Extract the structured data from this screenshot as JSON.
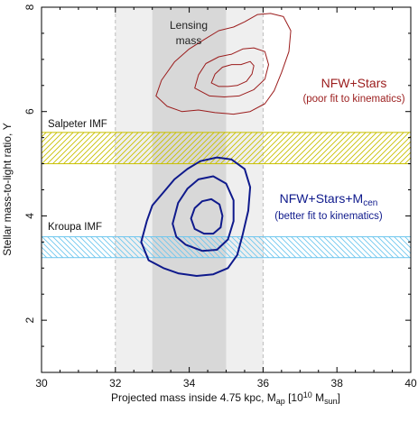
{
  "chart_data": {
    "type": "contour",
    "xlabel_main": "Projected mass inside 4.75 kpc, M",
    "xlabel_sub": "ap",
    "xlabel_unit_open": " [10",
    "xlabel_unit_exp": "10",
    "xlabel_unit_mid": " M",
    "xlabel_unit_sub": "sun",
    "xlabel_unit_close": "]",
    "ylabel": "Stellar mass-to-light ratio, Υ",
    "xlim": [
      30,
      40
    ],
    "ylim": [
      1,
      8
    ],
    "xticks": [
      30,
      32,
      34,
      36,
      38,
      40
    ],
    "yticks": [
      2,
      4,
      6,
      8
    ],
    "lensing_band": {
      "label_line1": "Lensing",
      "label_line2": "mass",
      "inner": [
        33.0,
        35.0
      ],
      "outer": [
        32.0,
        36.0
      ],
      "inner_color": "#d8d8d8",
      "outer_color": "#efefef"
    },
    "imf_bands": [
      {
        "name": "Salpeter IMF",
        "range": [
          5.0,
          5.6
        ],
        "color": "#c8c000",
        "hatch": "forward"
      },
      {
        "name": "Kroupa IMF",
        "range": [
          3.2,
          3.6
        ],
        "color": "#6ec6ee",
        "hatch": "backward"
      }
    ],
    "series": [
      {
        "name": "NFW+Stars",
        "note": "(poor fit to kinematics)",
        "color": "#9b1c1c",
        "contours": [
          [
            [
              34.6,
              6.55
            ],
            [
              34.7,
              6.72
            ],
            [
              34.9,
              6.85
            ],
            [
              35.15,
              6.9
            ],
            [
              35.4,
              6.9
            ],
            [
              35.65,
              6.96
            ],
            [
              35.75,
              6.88
            ],
            [
              35.7,
              6.72
            ],
            [
              35.55,
              6.58
            ],
            [
              35.3,
              6.5
            ],
            [
              35.05,
              6.48
            ],
            [
              34.8,
              6.48
            ]
          ],
          [
            [
              34.15,
              6.45
            ],
            [
              34.25,
              6.7
            ],
            [
              34.45,
              6.92
            ],
            [
              34.8,
              7.05
            ],
            [
              35.15,
              7.1
            ],
            [
              35.45,
              7.2
            ],
            [
              35.75,
              7.22
            ],
            [
              36.05,
              7.15
            ],
            [
              36.15,
              6.9
            ],
            [
              36.05,
              6.62
            ],
            [
              35.75,
              6.42
            ],
            [
              35.35,
              6.3
            ],
            [
              34.95,
              6.28
            ],
            [
              34.55,
              6.3
            ]
          ],
          [
            [
              33.1,
              6.3
            ],
            [
              33.25,
              6.6
            ],
            [
              33.6,
              6.95
            ],
            [
              34.0,
              7.2
            ],
            [
              34.4,
              7.38
            ],
            [
              34.8,
              7.55
            ],
            [
              35.2,
              7.62
            ],
            [
              35.5,
              7.72
            ],
            [
              35.85,
              7.86
            ],
            [
              36.2,
              7.88
            ],
            [
              36.55,
              7.82
            ],
            [
              36.75,
              7.55
            ],
            [
              36.7,
              7.15
            ],
            [
              36.5,
              6.75
            ],
            [
              36.3,
              6.4
            ],
            [
              36.05,
              6.15
            ],
            [
              35.65,
              6.0
            ],
            [
              35.2,
              5.95
            ],
            [
              34.7,
              5.98
            ],
            [
              34.25,
              6.03
            ],
            [
              33.8,
              6.0
            ],
            [
              33.4,
              6.1
            ]
          ]
        ]
      },
      {
        "name": "NFW+Stars+M",
        "name_sub": "cen",
        "note": "(better fit to kinematics)",
        "color": "#0f1a8c",
        "contours": [
          [
            [
              34.05,
              3.95
            ],
            [
              34.15,
              4.15
            ],
            [
              34.35,
              4.28
            ],
            [
              34.6,
              4.32
            ],
            [
              34.82,
              4.22
            ],
            [
              34.9,
              4.0
            ],
            [
              34.85,
              3.78
            ],
            [
              34.65,
              3.66
            ],
            [
              34.4,
              3.66
            ],
            [
              34.15,
              3.75
            ]
          ],
          [
            [
              33.55,
              3.85
            ],
            [
              33.7,
              4.25
            ],
            [
              33.95,
              4.52
            ],
            [
              34.25,
              4.7
            ],
            [
              34.65,
              4.76
            ],
            [
              35.0,
              4.62
            ],
            [
              35.2,
              4.3
            ],
            [
              35.2,
              3.9
            ],
            [
              35.05,
              3.55
            ],
            [
              34.75,
              3.35
            ],
            [
              34.35,
              3.33
            ],
            [
              33.9,
              3.45
            ],
            [
              33.65,
              3.6
            ]
          ],
          [
            [
              32.7,
              3.5
            ],
            [
              32.85,
              3.9
            ],
            [
              33.0,
              4.2
            ],
            [
              33.3,
              4.45
            ],
            [
              33.6,
              4.7
            ],
            [
              33.95,
              4.9
            ],
            [
              34.3,
              5.05
            ],
            [
              34.75,
              5.12
            ],
            [
              35.15,
              5.08
            ],
            [
              35.5,
              4.9
            ],
            [
              35.65,
              4.55
            ],
            [
              35.6,
              4.1
            ],
            [
              35.45,
              3.65
            ],
            [
              35.3,
              3.25
            ],
            [
              35.05,
              3.0
            ],
            [
              34.65,
              2.88
            ],
            [
              34.2,
              2.85
            ],
            [
              33.7,
              2.9
            ],
            [
              33.3,
              3.0
            ],
            [
              32.9,
              3.15
            ]
          ]
        ]
      }
    ]
  }
}
